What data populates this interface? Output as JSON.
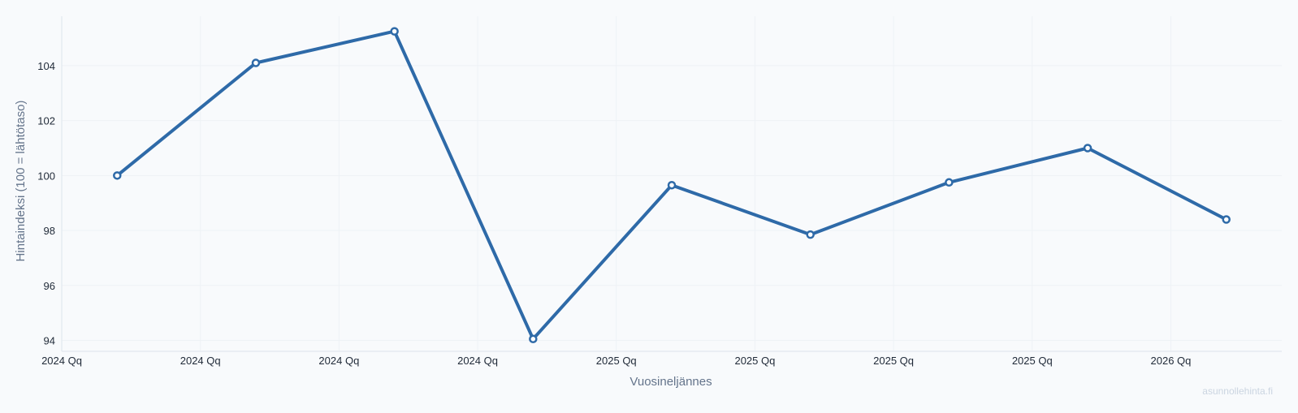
{
  "chart_data": {
    "type": "line",
    "x_categories": [
      "2024 Qq",
      "2024 Qq",
      "2024 Qq",
      "2024 Qq",
      "2025 Qq",
      "2025 Qq",
      "2025 Qq",
      "2025 Qq",
      "2026 Qq"
    ],
    "series": [
      {
        "color": "#2e6aa8",
        "points": [
          {
            "x": 0.4,
            "y": 100.0
          },
          {
            "x": 1.4,
            "y": 104.1
          },
          {
            "x": 2.4,
            "y": 105.25
          },
          {
            "x": 3.4,
            "y": 94.05
          },
          {
            "x": 4.4,
            "y": 99.65
          },
          {
            "x": 5.4,
            "y": 97.85
          },
          {
            "x": 6.4,
            "y": 99.75
          },
          {
            "x": 7.4,
            "y": 101.0
          },
          {
            "x": 8.4,
            "y": 98.4
          }
        ]
      }
    ],
    "xlabel": "Vuosineljännes",
    "ylabel": "Hintaindeksi (100 = lähtötaso)",
    "yticks": [
      94,
      96,
      98,
      100,
      102,
      104
    ],
    "xlim": [
      0,
      8.8
    ],
    "ylim": [
      93.6,
      105.8
    ],
    "grid": true,
    "legend": "none"
  },
  "watermark": "asunnollehinta.fi"
}
